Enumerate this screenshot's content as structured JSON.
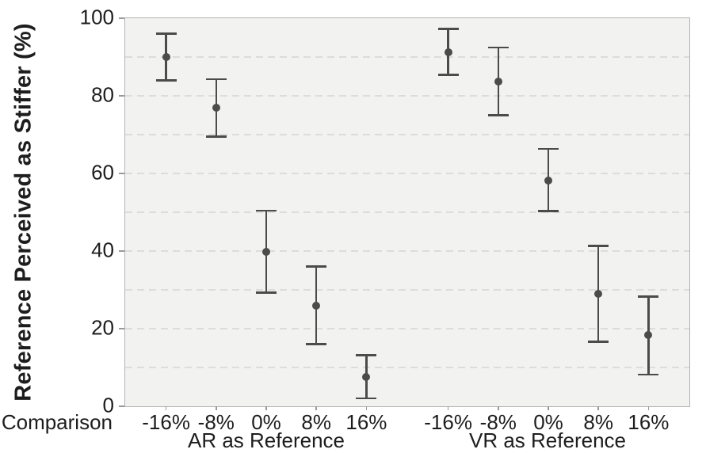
{
  "chart_data": {
    "type": "scatter",
    "subtype": "point-estimates-with-error-bars",
    "title": "",
    "xlabel": "Comparison",
    "ylabel": "Reference Perceived as Stiffer (%)",
    "ylim": [
      0,
      100
    ],
    "y_ticks": [
      0,
      20,
      40,
      60,
      80,
      100
    ],
    "grid": {
      "horizontal_interval": 10,
      "style": "dashed"
    },
    "legend": "none",
    "categories": [
      "-16%",
      "-8%",
      "0%",
      "8%",
      "16%"
    ],
    "series": [
      {
        "name": "AR as Reference",
        "means": [
          90.0,
          77.0,
          39.8,
          26.0,
          7.5
        ],
        "ci_low": [
          84.0,
          69.5,
          29.3,
          16.0,
          2.0
        ],
        "ci_high": [
          96.0,
          84.3,
          50.4,
          36.0,
          13.2
        ]
      },
      {
        "name": "VR as Reference",
        "means": [
          91.3,
          83.7,
          58.2,
          29.0,
          18.3
        ],
        "ci_low": [
          85.4,
          75.0,
          50.3,
          16.6,
          8.2
        ],
        "ci_high": [
          97.2,
          92.5,
          66.3,
          41.3,
          28.3
        ]
      }
    ]
  },
  "colors": {
    "marker": "#4b4b4b",
    "plot_bg": "#f2f2f0",
    "grid": "#dcdcda",
    "border": "#b3b3b1",
    "tick": "#999999",
    "text": "#1d1d1d"
  }
}
